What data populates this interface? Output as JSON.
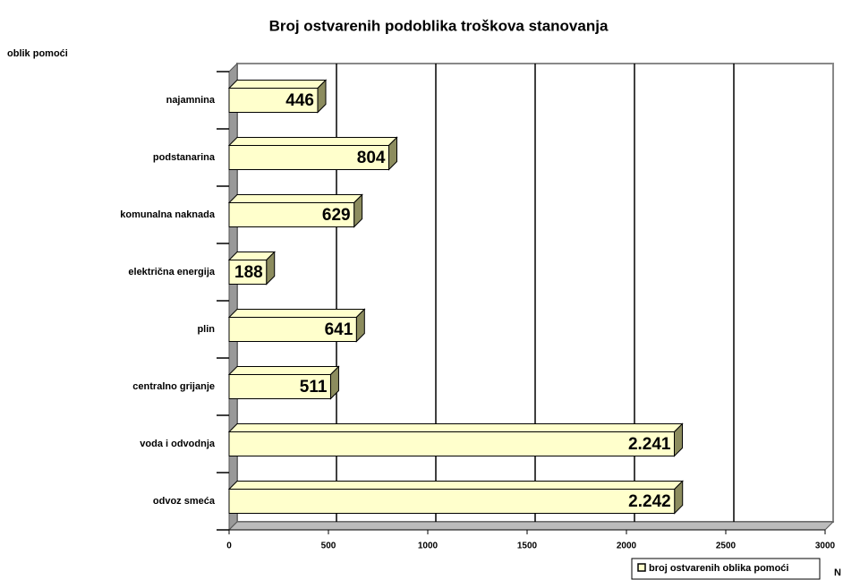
{
  "chart_data": {
    "type": "bar",
    "orientation": "horizontal",
    "title": "Broj ostvarenih podoblika troškova stanovanja",
    "y_label": "oblik pomoći",
    "x_label": "N",
    "categories": [
      "najamnina",
      "podstanarina",
      "komunalna naknada",
      "električna energija",
      "plin",
      "centralno grijanje",
      "voda i odvodnja",
      "odvoz smeća"
    ],
    "series": [
      {
        "name": "broj ostvarenih oblika pomoći",
        "color": "#ffffcc",
        "values": [
          446,
          804,
          629,
          188,
          641,
          511,
          2241,
          2242
        ],
        "value_labels": [
          "446",
          "804",
          "629",
          "188",
          "641",
          "511",
          "2.241",
          "2.242"
        ]
      }
    ],
    "xlim": [
      0,
      3000
    ],
    "xticks": [
      0,
      500,
      1000,
      1500,
      2000,
      2500,
      3000
    ],
    "grid": true
  }
}
